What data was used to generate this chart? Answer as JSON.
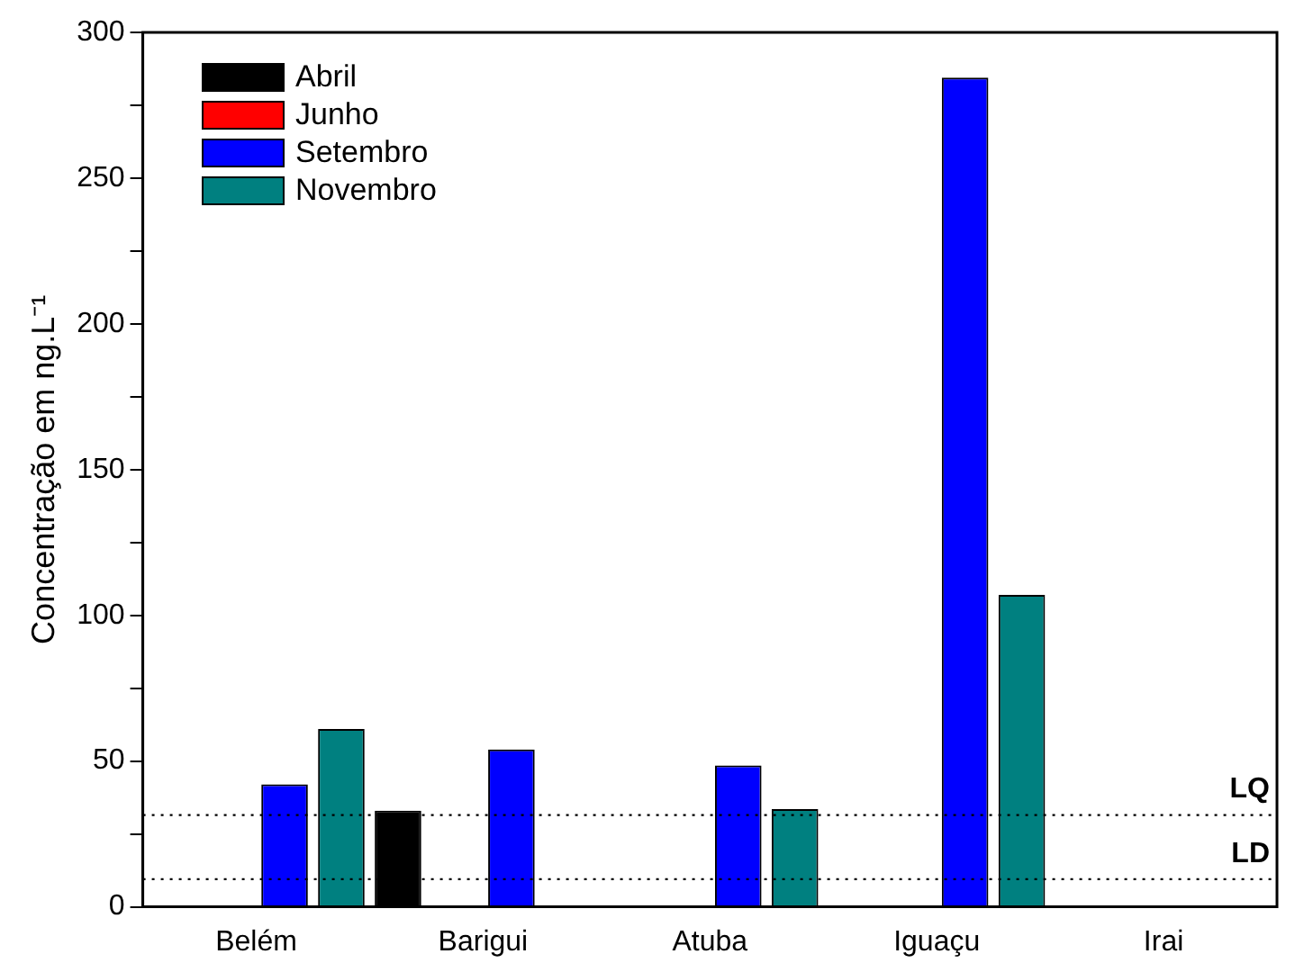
{
  "chart_data": {
    "type": "bar",
    "ylabel": "Concentração em ng.L⁻¹",
    "categories": [
      "Belém",
      "Barigui",
      "Atuba",
      "Iguaçu",
      "Irai"
    ],
    "series": [
      {
        "name": "Abril",
        "color": "#000000",
        "values": [
          null,
          33,
          null,
          null,
          null
        ]
      },
      {
        "name": "Junho",
        "color": "#ff0000",
        "values": [
          null,
          null,
          null,
          null,
          null
        ]
      },
      {
        "name": "Setembro",
        "color": "#0000ff",
        "values": [
          42,
          54,
          48.5,
          284.5,
          null
        ]
      },
      {
        "name": "Novembro",
        "color": "#008080",
        "values": [
          61,
          null,
          33.5,
          107,
          null
        ]
      }
    ],
    "ylim": [
      0,
      300
    ],
    "yticks": [
      0,
      {
        "value": 25,
        "label": null
      },
      50,
      {
        "value": 75,
        "label": null
      },
      100,
      {
        "value": 125,
        "label": null
      },
      150,
      {
        "value": 175,
        "label": null
      },
      200,
      {
        "value": 225,
        "label": null
      },
      250,
      {
        "value": 275,
        "label": null
      },
      300
    ],
    "ref_lines": [
      {
        "axis": "y",
        "value": 31.5,
        "label": "LQ",
        "color": "#000000",
        "line_style": "dotted"
      },
      {
        "axis": "y",
        "value": 9.5,
        "label": "LD",
        "color": "#000000",
        "line_style": "dotted"
      }
    ],
    "grid": false,
    "legend": "top left"
  }
}
